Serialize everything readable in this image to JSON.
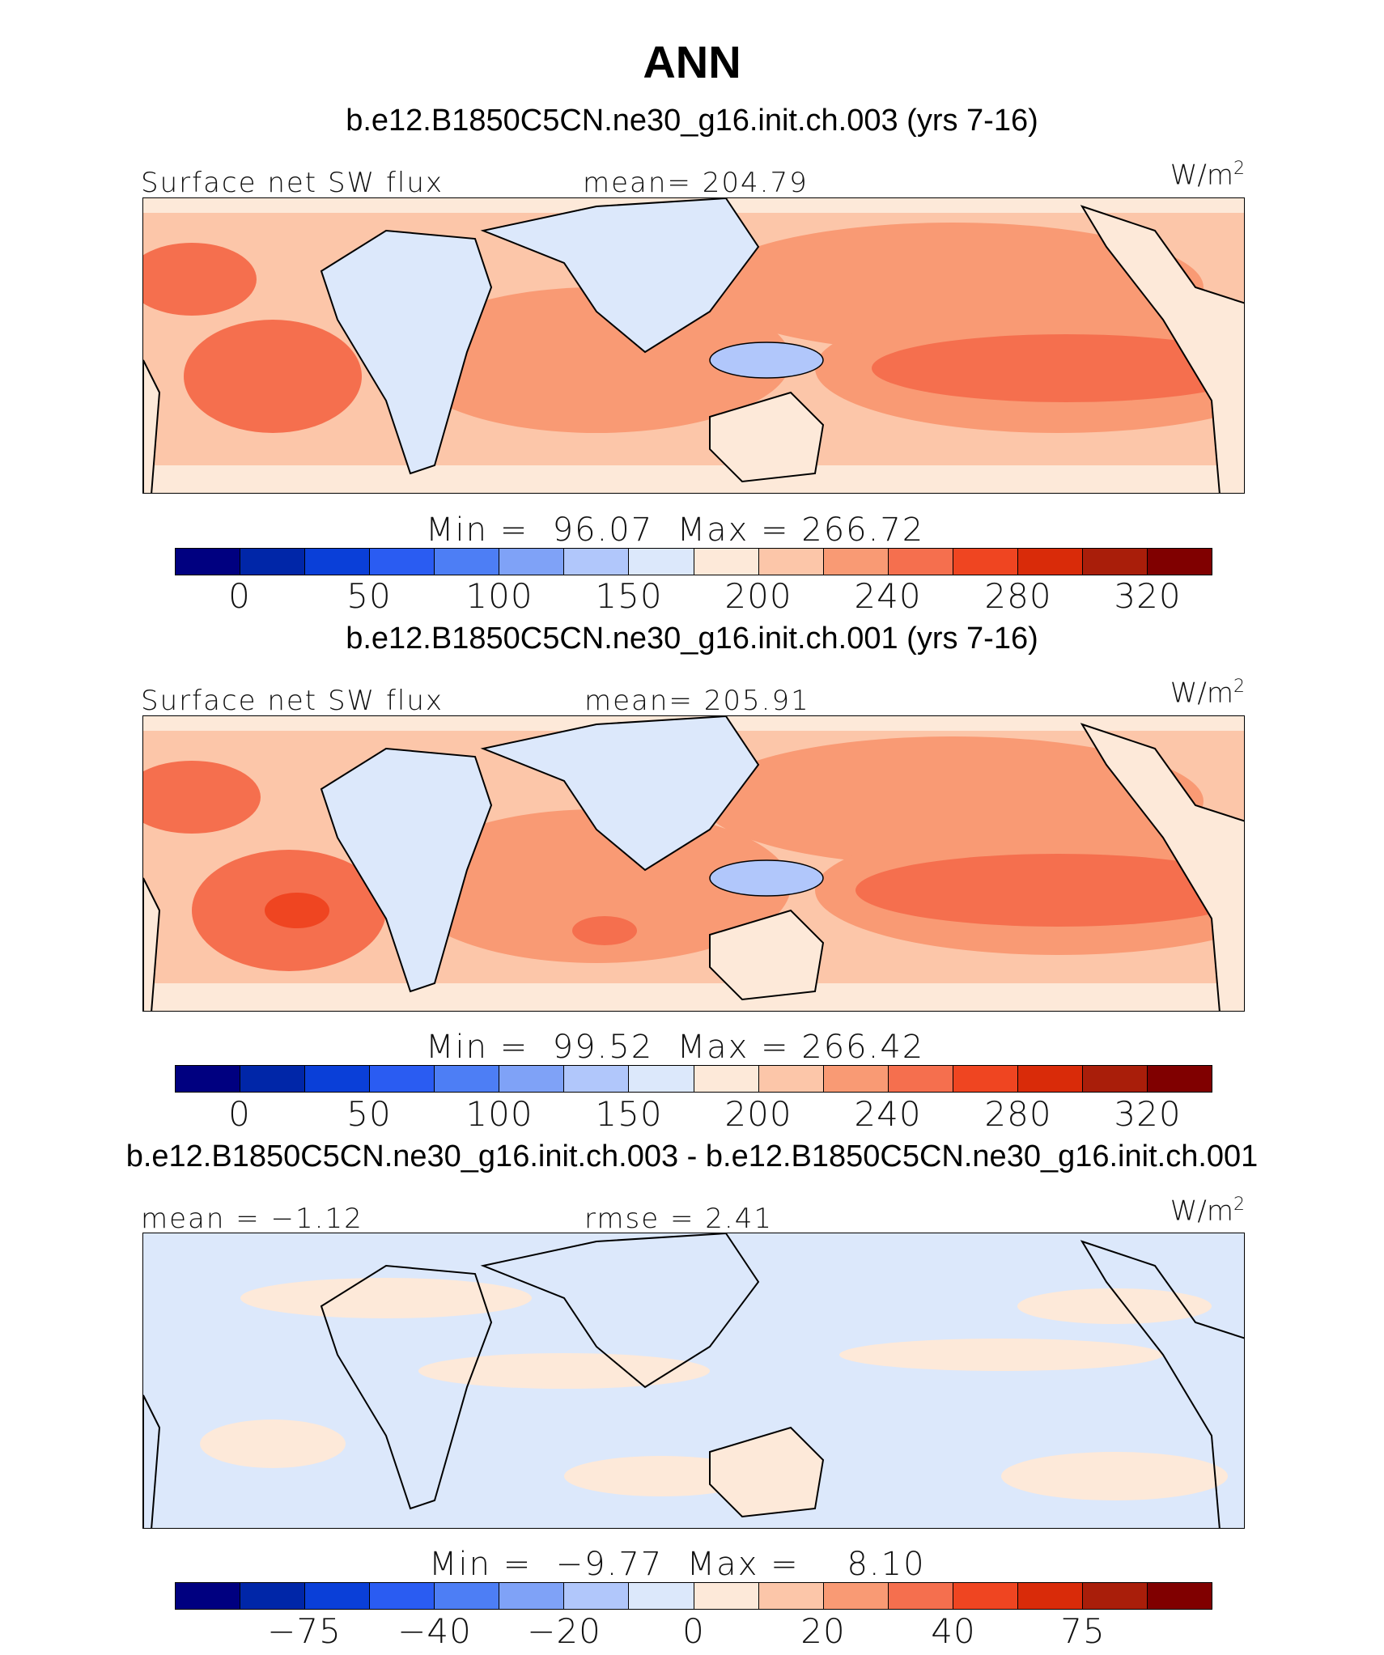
{
  "figure": {
    "title": "ANN"
  },
  "colors": {
    "abs_scale": [
      "#000080",
      "#0026a8",
      "#0a3fd8",
      "#2a5cf2",
      "#4d7ef5",
      "#7fa2f7",
      "#b1c7fb",
      "#dce8fb",
      "#fde9d9",
      "#fcc6a9",
      "#f99a74",
      "#f56f4e",
      "#ef4521",
      "#d92b09",
      "#a91e0a",
      "#800000"
    ],
    "land_outline": "#000000"
  },
  "chart_data": [
    {
      "type": "heatmap",
      "name": "panel-1",
      "title": "b.e12.B1850C5CN.ne30_g16.init.ch.003 (yrs 7-16)",
      "variable": "Surface net SW flux",
      "stat_label": "mean=",
      "stat_value": "204.79",
      "units_base": "W/m",
      "units_exp": "2",
      "min_label": "Min =",
      "min_value": "96.07",
      "max_label": "Max =",
      "max_value": "266.72",
      "colorbar_ticks": [
        "0",
        "50",
        "100",
        "150",
        "200",
        "240",
        "280",
        "320"
      ],
      "colorbar_boundaries": [
        -25,
        0,
        25,
        50,
        75,
        100,
        125,
        150,
        175,
        200,
        220,
        240,
        260,
        280,
        300,
        320
      ],
      "xlim": [
        0,
        360
      ],
      "ylim": [
        -38,
        38
      ]
    },
    {
      "type": "heatmap",
      "name": "panel-2",
      "title": "b.e12.B1850C5CN.ne30_g16.init.ch.001 (yrs 7-16)",
      "variable": "Surface net SW flux",
      "stat_label": "mean=",
      "stat_value": "205.91",
      "units_base": "W/m",
      "units_exp": "2",
      "min_label": "Min =",
      "min_value": "99.52",
      "max_label": "Max =",
      "max_value": "266.42",
      "colorbar_ticks": [
        "0",
        "50",
        "100",
        "150",
        "200",
        "240",
        "280",
        "320"
      ],
      "colorbar_boundaries": [
        -25,
        0,
        25,
        50,
        75,
        100,
        125,
        150,
        175,
        200,
        220,
        240,
        260,
        280,
        300,
        320
      ],
      "xlim": [
        0,
        360
      ],
      "ylim": [
        -38,
        38
      ]
    },
    {
      "type": "heatmap",
      "name": "panel-diff",
      "title": "b.e12.B1850C5CN.ne30_g16.init.ch.003 - b.e12.B1850C5CN.ne30_g16.init.ch.001",
      "variable": "mean =",
      "variable_value": "−1.12",
      "stat_label": "rmse =",
      "stat_value": "2.41",
      "units_base": "W/m",
      "units_exp": "2",
      "min_label": "Min =",
      "min_value": "−9.77",
      "max_label": "Max =",
      "max_value": "8.10",
      "colorbar_ticks": [
        "−75",
        "−40",
        "−20",
        "0",
        "20",
        "40",
        "75"
      ],
      "colorbar_boundaries": [
        -100,
        -75,
        -60,
        -40,
        -30,
        -20,
        -10,
        0,
        10,
        20,
        30,
        40,
        60,
        75,
        100
      ],
      "xlim": [
        0,
        360
      ],
      "ylim": [
        -38,
        38
      ]
    }
  ]
}
